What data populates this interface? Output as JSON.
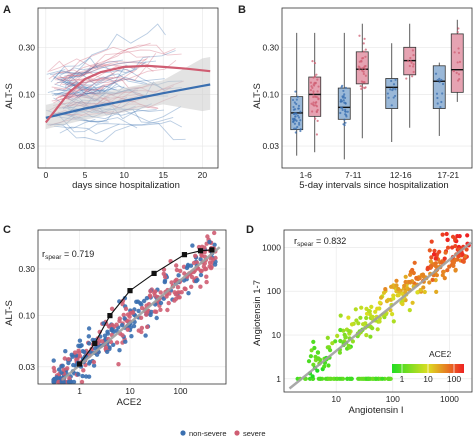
{
  "colors": {
    "non_severe": "#3a6fb0",
    "severe": "#cf5d72",
    "nonsevere_fill": "#9ab8d8",
    "severe_fill": "#e6a3b2",
    "black": "#111111",
    "trend": "#a0a0a0"
  },
  "legend": {
    "items": [
      {
        "label": "non-severe",
        "color": "#3a6fb0"
      },
      {
        "label": "severe",
        "color": "#cf5d72"
      }
    ]
  },
  "chart_data": [
    {
      "panel": "A",
      "type": "line",
      "xlabel": "days since hospitalization",
      "ylabel": "ALT-S",
      "xticks": [
        "0",
        "5",
        "10",
        "15",
        "20"
      ],
      "yticks": [
        "0.03",
        "0.10",
        "0.30"
      ],
      "ylog": true,
      "xlim": [
        -1,
        22
      ],
      "ylim": [
        0.018,
        0.75
      ],
      "grid": true,
      "series": [
        {
          "name": "non-severe",
          "x": [
            0,
            5,
            10,
            15,
            20,
            21
          ],
          "y": [
            0.058,
            0.072,
            0.086,
            0.103,
            0.122,
            0.126
          ]
        },
        {
          "name": "severe",
          "x": [
            0,
            3,
            5,
            7,
            10,
            13,
            15,
            18,
            21
          ],
          "y": [
            0.052,
            0.105,
            0.143,
            0.168,
            0.19,
            0.195,
            0.19,
            0.182,
            0.172
          ]
        }
      ]
    },
    {
      "panel": "B",
      "type": "box",
      "xlabel": "5-day intervals since hospitalization",
      "ylabel": "ALT-S",
      "categories": [
        "1-6",
        "7-11",
        "12-16",
        "17-21"
      ],
      "yticks": [
        "0.03",
        "0.10",
        "0.30"
      ],
      "ylog": true,
      "ylim": [
        0.018,
        0.75
      ],
      "grid": true,
      "series": [
        {
          "name": "non-severe",
          "boxes": [
            {
              "low": 0.024,
              "q1": 0.044,
              "median": 0.065,
              "q3": 0.095,
              "high": 0.42
            },
            {
              "low": 0.022,
              "q1": 0.056,
              "median": 0.074,
              "q3": 0.116,
              "high": 0.42
            },
            {
              "low": 0.033,
              "q1": 0.072,
              "median": 0.118,
              "q3": 0.145,
              "high": 0.33
            },
            {
              "low": 0.038,
              "q1": 0.072,
              "median": 0.136,
              "q3": 0.195,
              "high": 0.21
            }
          ]
        },
        {
          "name": "severe",
          "boxes": [
            {
              "low": 0.026,
              "q1": 0.06,
              "median": 0.1,
              "q3": 0.15,
              "high": 0.42
            },
            {
              "low": 0.036,
              "q1": 0.128,
              "median": 0.18,
              "q3": 0.27,
              "high": 0.52
            },
            {
              "low": 0.046,
              "q1": 0.158,
              "median": 0.22,
              "q3": 0.3,
              "high": 0.52
            },
            {
              "low": 0.084,
              "q1": 0.105,
              "median": 0.178,
              "q3": 0.41,
              "high": 0.57
            }
          ]
        }
      ]
    },
    {
      "panel": "C",
      "type": "scatter",
      "xlabel": "ACE2",
      "ylabel": "ALT-S",
      "annotation": {
        "r_label": "r",
        "r_sub": "spear",
        "r_value": " = 0.719"
      },
      "xticks": [
        "1",
        "10",
        "100"
      ],
      "yticks": [
        "0.03",
        "0.10",
        "0.30"
      ],
      "xlog": true,
      "ylog": true,
      "xlim": [
        0.15,
        800
      ],
      "ylim": [
        0.02,
        0.75
      ],
      "grid": true,
      "trend": {
        "x": [
          0.45,
          600
        ],
        "y": [
          0.022,
          0.5
        ]
      },
      "binned_medians": {
        "x": [
          1,
          2,
          4,
          10,
          30,
          120,
          250,
          420
        ],
        "y": [
          0.032,
          0.052,
          0.1,
          0.18,
          0.27,
          0.42,
          0.46,
          0.47
        ]
      }
    },
    {
      "panel": "D",
      "type": "scatter",
      "xlabel": "Angiotensin I",
      "ylabel": "Angiotensin 1-7",
      "annotation": {
        "r_label": "r",
        "r_sub": "spear",
        "r_value": " = 0.832"
      },
      "xticks": [
        "10",
        "100",
        "1000"
      ],
      "yticks": [
        "1",
        "10",
        "100",
        "1000"
      ],
      "xlog": true,
      "ylog": true,
      "xlim": [
        1.2,
        2500
      ],
      "ylim": [
        0.5,
        2500
      ],
      "grid": true,
      "trend": {
        "x": [
          1.5,
          2400
        ],
        "y": [
          0.6,
          1300
        ]
      },
      "colorbar": {
        "title": "ACE2",
        "ticks": [
          "1",
          "10",
          "100"
        ],
        "low": "#22dd22",
        "mid": "#dddd22",
        "high": "#ee2222"
      }
    }
  ],
  "panel_labels": [
    "A",
    "B",
    "C",
    "D"
  ]
}
